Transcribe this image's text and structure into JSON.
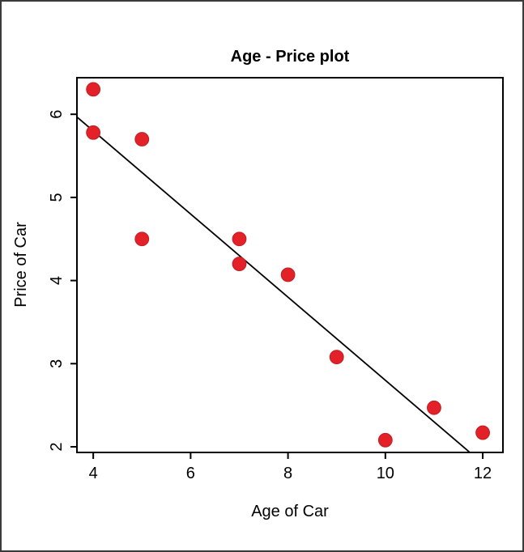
{
  "figure": {
    "background": "#ffffff",
    "border_color": "#3a3a3a"
  },
  "chart_data": {
    "type": "scatter",
    "title": "Age - Price plot",
    "xlabel": "Age of Car",
    "ylabel": "Price of Car",
    "x": [
      4,
      4,
      5,
      5,
      7,
      7,
      8,
      9,
      10,
      11,
      12
    ],
    "y": [
      6.3,
      5.78,
      5.7,
      4.5,
      4.5,
      4.2,
      4.07,
      3.08,
      2.08,
      2.47,
      2.17
    ],
    "x_ticks": [
      4,
      6,
      8,
      10,
      12
    ],
    "y_ticks": [
      2,
      3,
      4,
      5,
      6
    ],
    "xlim": [
      3.665,
      12.415
    ],
    "ylim": [
      1.932,
      6.44
    ],
    "grid": false,
    "legend": "none",
    "marker": {
      "shape": "filled-circle",
      "color": "#e32128",
      "edge_color": "#c01d23",
      "radius_px": 8.4
    },
    "regression_line": {
      "slope": -0.5,
      "intercept": 7.8,
      "color": "#000000"
    },
    "axis_color": "#000000"
  }
}
